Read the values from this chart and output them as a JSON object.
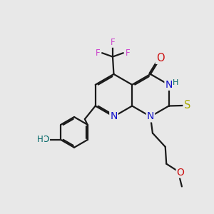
{
  "bg_color": "#e8e8e8",
  "bond_color": "#1a1a1a",
  "bond_width": 1.6,
  "dbo": 0.06,
  "atom_colors": {
    "N": "#1010cc",
    "O_red": "#cc1010",
    "O_teal": "#006666",
    "S": "#aaaa00",
    "F": "#cc44cc",
    "H_teal": "#006666",
    "C": "#1a1a1a"
  },
  "font_size": 9.5,
  "fig_size": [
    3.0,
    3.0
  ],
  "dpi": 100,
  "xlim": [
    0,
    10
  ],
  "ylim": [
    0,
    10
  ]
}
